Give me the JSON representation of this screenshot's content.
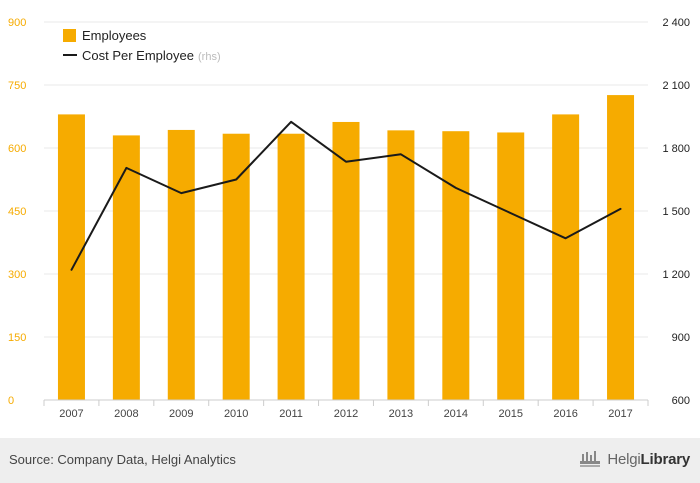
{
  "colors": {
    "bar": "#f6ab00",
    "line": "#1a1a1a",
    "left_axis_text": "#f6ab00",
    "right_axis_text": "#222222",
    "grid": "#e8e8e8",
    "rhs_note": "#bbbbbb"
  },
  "chart_data": {
    "type": "bar",
    "title": "",
    "categories": [
      "2007",
      "2008",
      "2009",
      "2010",
      "2011",
      "2012",
      "2013",
      "2014",
      "2015",
      "2016",
      "2017"
    ],
    "series": [
      {
        "name": "Employees",
        "type": "bar",
        "axis": "left",
        "values": [
          680,
          630,
          643,
          634,
          634,
          662,
          642,
          640,
          637,
          680,
          726
        ]
      },
      {
        "name": "Cost Per Employee",
        "type": "line",
        "axis": "right",
        "note": "(rhs)",
        "values": [
          1220,
          1705,
          1585,
          1650,
          1925,
          1735,
          1770,
          1610,
          1490,
          1370,
          1510
        ]
      }
    ],
    "left_axis": {
      "ylim": [
        0,
        900
      ],
      "ticks": [
        "0",
        "150",
        "300",
        "450",
        "600",
        "750",
        "900"
      ]
    },
    "right_axis": {
      "ylim": [
        600,
        2400
      ],
      "ticks": [
        "600",
        "900",
        "1 200",
        "1 500",
        "1 800",
        "2 100",
        "2 400"
      ]
    },
    "grid": true,
    "legend": "top-left"
  },
  "footer": {
    "source": "Source: Company Data, Helgi Analytics",
    "brand_light": "Helgi",
    "brand_bold": "Library"
  }
}
